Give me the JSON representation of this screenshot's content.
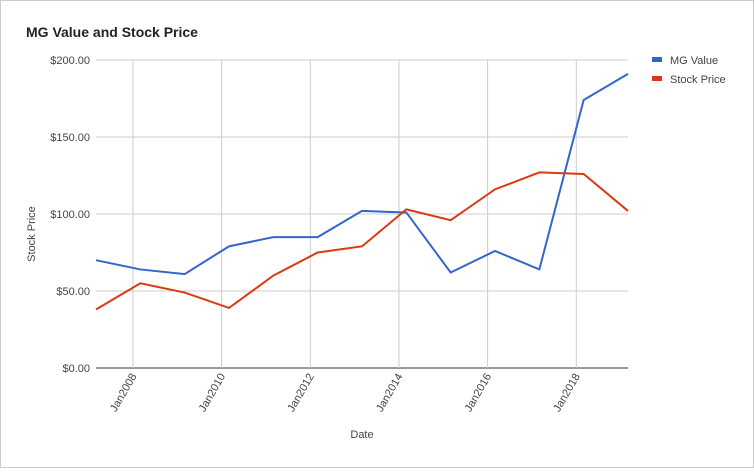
{
  "chart_data": {
    "type": "line",
    "title": "MG Value and Stock Price",
    "x_label": "Date",
    "y_label": "Stock Price",
    "x": [
      "2007-03",
      "2008-03",
      "2009-03",
      "2010-03",
      "2011-03",
      "2012-03",
      "2013-03",
      "2014-03",
      "2015-03",
      "2016-03",
      "2017-03",
      "2018-03",
      "2019-03"
    ],
    "xlim": [
      "2007-03",
      "2019-03"
    ],
    "xticks": [
      {
        "value": "2008-01",
        "label": "Jan2008"
      },
      {
        "value": "2010-01",
        "label": "Jan2010"
      },
      {
        "value": "2012-01",
        "label": "Jan2012"
      },
      {
        "value": "2014-01",
        "label": "Jan2014"
      },
      {
        "value": "2016-01",
        "label": "Jan2016"
      },
      {
        "value": "2018-01",
        "label": "Jan2018"
      }
    ],
    "ylim": [
      0,
      200
    ],
    "yticks": [
      {
        "value": 0,
        "label": "$0.00"
      },
      {
        "value": 50,
        "label": "$50.00"
      },
      {
        "value": 100,
        "label": "$100.00"
      },
      {
        "value": 150,
        "label": "$150.00"
      },
      {
        "value": 200,
        "label": "$200.00"
      }
    ],
    "grid": true,
    "legend": "right",
    "series": [
      {
        "name": "MG Value",
        "color": "#3366cc",
        "values": [
          70,
          64,
          61,
          79,
          85,
          85,
          102,
          101,
          62,
          76,
          64,
          174,
          191
        ]
      },
      {
        "name": "Stock Price",
        "color": "#dc3912",
        "values": [
          38,
          55,
          49,
          39,
          60,
          75,
          79,
          103,
          96,
          116,
          127,
          126,
          102
        ]
      }
    ]
  }
}
